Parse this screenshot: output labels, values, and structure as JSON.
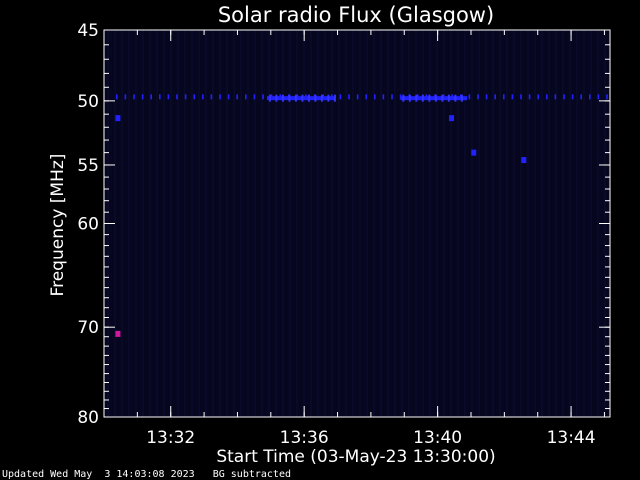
{
  "colors": {
    "background": "#000000",
    "plot_bg": "#06061e",
    "axis": "#ffffff",
    "blue_signal": "#2222ff",
    "magenta_signal": "#d0189c"
  },
  "chart_data": {
    "type": "heatmap",
    "title": "Solar radio Flux (Glasgow)",
    "xlabel": "Start Time (03-May-23 13:30:00)",
    "ylabel": "Frequency [MHz]",
    "x_unit": "time",
    "xlim": [
      "13:30:00",
      "13:45:10"
    ],
    "ylim_reversed": [
      45,
      80
    ],
    "y_scale": "log",
    "x_ticks": [
      "13:32",
      "13:36",
      "13:40",
      "13:44"
    ],
    "y_ticks": [
      45,
      50,
      55,
      60,
      70,
      80
    ],
    "grid": false,
    "interference_bands": [
      {
        "time_start": "13:30:00",
        "time_end": "13:45:10",
        "freq_mhz": 49.7,
        "style": "dotted"
      },
      {
        "time_start": "13:34:53",
        "time_end": "13:36:55",
        "freq_mhz": 49.8,
        "style": "solid"
      },
      {
        "time_start": "13:38:53",
        "time_end": "13:40:53",
        "freq_mhz": 49.8,
        "style": "solid"
      }
    ],
    "spots": [
      {
        "time": "13:30:25",
        "freq_mhz": 51.3,
        "color": "blue"
      },
      {
        "time": "13:40:25",
        "freq_mhz": 51.3,
        "color": "blue"
      },
      {
        "time": "13:41:05",
        "freq_mhz": 54.0,
        "color": "blue"
      },
      {
        "time": "13:42:35",
        "freq_mhz": 54.6,
        "color": "blue"
      },
      {
        "time": "13:30:25",
        "freq_mhz": 70.7,
        "color": "magenta"
      }
    ]
  },
  "footer": {
    "updated": "Updated Wed May  3 14:03:08 2023",
    "note": "BG subtracted"
  }
}
